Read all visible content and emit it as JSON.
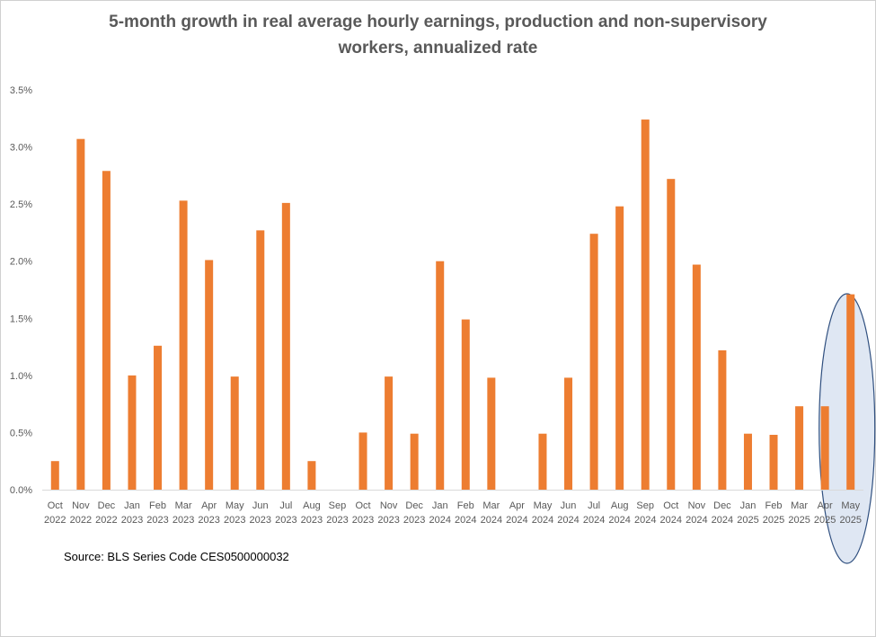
{
  "chart_data": {
    "type": "bar",
    "title_lines": [
      "5-month growth in real average hourly earnings, production and non-supervisory",
      "workers, annualized rate"
    ],
    "categories": [
      [
        "Oct",
        "2022"
      ],
      [
        "Nov",
        "2022"
      ],
      [
        "Dec",
        "2022"
      ],
      [
        "Jan",
        "2023"
      ],
      [
        "Feb",
        "2023"
      ],
      [
        "Mar",
        "2023"
      ],
      [
        "Apr",
        "2023"
      ],
      [
        "May",
        "2023"
      ],
      [
        "Jun",
        "2023"
      ],
      [
        "Jul",
        "2023"
      ],
      [
        "Aug",
        "2023"
      ],
      [
        "Sep",
        "2023"
      ],
      [
        "Oct",
        "2023"
      ],
      [
        "Nov",
        "2023"
      ],
      [
        "Dec",
        "2023"
      ],
      [
        "Jan",
        "2024"
      ],
      [
        "Feb",
        "2024"
      ],
      [
        "Mar",
        "2024"
      ],
      [
        "Apr",
        "2024"
      ],
      [
        "May",
        "2024"
      ],
      [
        "Jun",
        "2024"
      ],
      [
        "Jul",
        "2024"
      ],
      [
        "Aug",
        "2024"
      ],
      [
        "Sep",
        "2024"
      ],
      [
        "Oct",
        "2024"
      ],
      [
        "Nov",
        "2024"
      ],
      [
        "Dec",
        "2024"
      ],
      [
        "Jan",
        "2025"
      ],
      [
        "Feb",
        "2025"
      ],
      [
        "Mar",
        "2025"
      ],
      [
        "Apr",
        "2025"
      ],
      [
        "May",
        "2025"
      ]
    ],
    "values": [
      0.25,
      3.07,
      2.79,
      1.0,
      1.26,
      2.53,
      2.01,
      0.99,
      2.27,
      2.51,
      0.25,
      0.0,
      0.5,
      0.99,
      0.49,
      2.0,
      1.49,
      0.98,
      0.0,
      0.49,
      0.98,
      2.24,
      2.48,
      3.24,
      2.72,
      1.97,
      1.22,
      0.49,
      0.48,
      0.73,
      0.73,
      1.71
    ],
    "ylim": [
      0,
      3.5
    ],
    "y_ticks": [
      "0.0%",
      "0.5%",
      "1.0%",
      "1.5%",
      "2.0%",
      "2.5%",
      "3.0%",
      "3.5%"
    ],
    "xlabel": "",
    "ylabel": "",
    "bar_color": "#ED7D31",
    "highlight_index": 31,
    "highlight_stroke": "#2F4F7F",
    "highlight_fill": "#C5D3EA",
    "source": "Source: BLS Series Code CES0500000032"
  }
}
